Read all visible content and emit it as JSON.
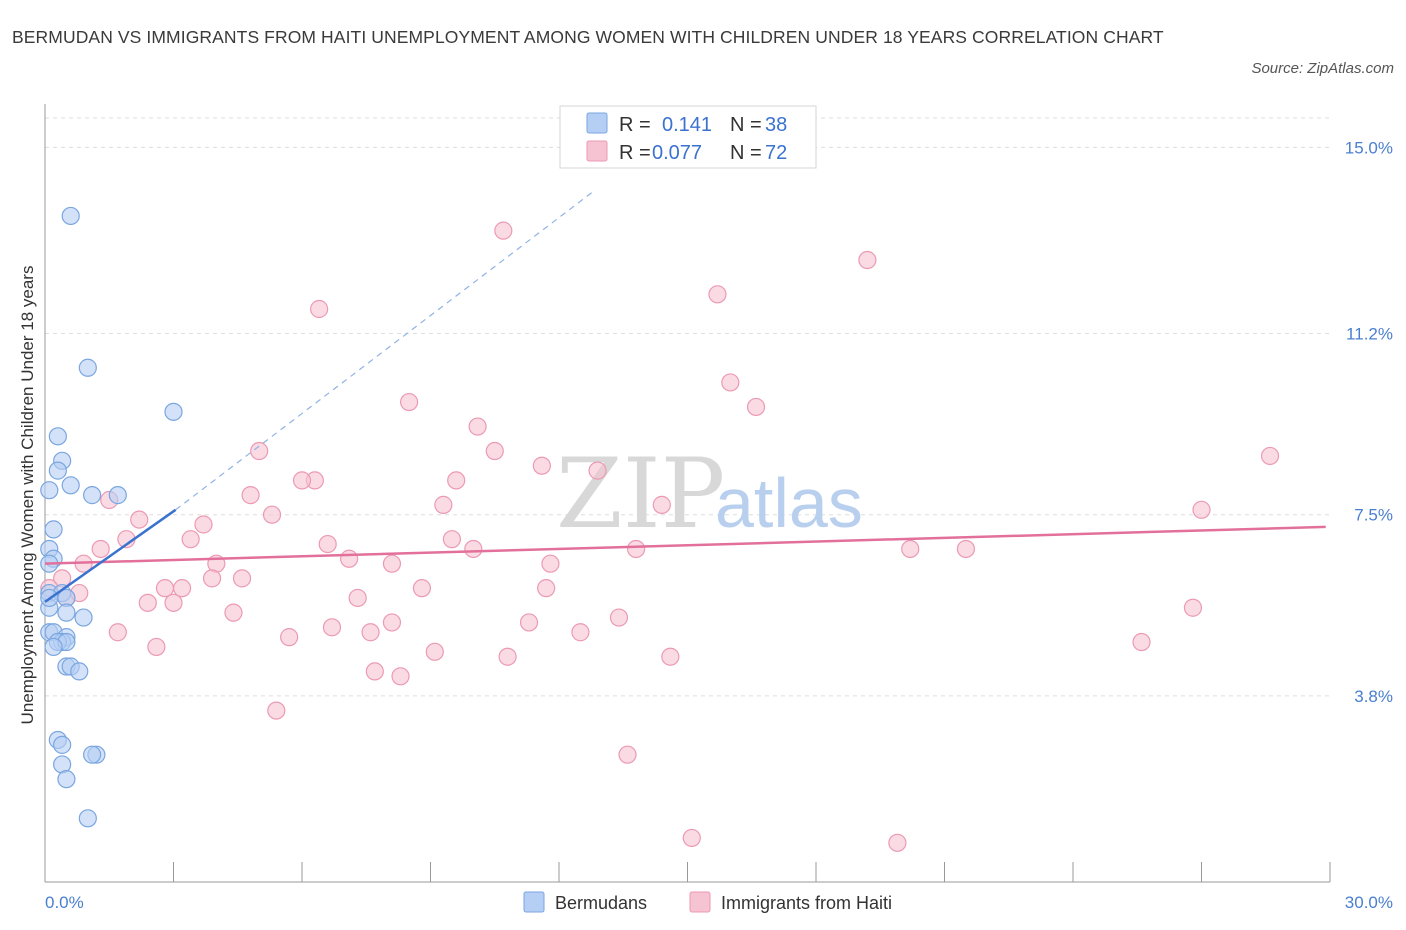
{
  "header": {
    "title": "BERMUDAN VS IMMIGRANTS FROM HAITI UNEMPLOYMENT AMONG WOMEN WITH CHILDREN UNDER 18 YEARS CORRELATION CHART",
    "source": "Source: ZipAtlas.com"
  },
  "watermark": {
    "zip": "ZIP",
    "atlas": "atlas"
  },
  "stats": {
    "bermudans": {
      "r_label": "R =",
      "r_value": "0.141",
      "n_label": "N =",
      "n_value": "38"
    },
    "haiti": {
      "r_label": "R =",
      "r_value": "0.077",
      "n_label": "N =",
      "n_value": "72"
    }
  },
  "legend": {
    "bermudans": "Bermudans",
    "haiti": "Immigrants from Haiti"
  },
  "colors": {
    "bermudans_fill": "#b5cef3",
    "bermudans_stroke": "#7aa6e0",
    "bermudans_line": "#3a72d0",
    "haiti_fill": "#f6c3d2",
    "haiti_stroke": "#ec9ab4",
    "haiti_line": "#e2709a",
    "tick_label": "#4a7fcf",
    "grid": "#dddddd"
  },
  "chart_data": {
    "type": "scatter",
    "title": "BERMUDAN VS IMMIGRANTS FROM HAITI UNEMPLOYMENT AMONG WOMEN WITH CHILDREN UNDER 18 YEARS CORRELATION CHART",
    "xlabel": "",
    "ylabel": "Unemployment Among Women with Children Under 18 years",
    "xlim": [
      0,
      30
    ],
    "ylim": [
      0,
      15.6
    ],
    "x_tick_labels": [
      "0.0%",
      "30.0%"
    ],
    "y_ticks": [
      3.8,
      7.5,
      11.2,
      15.0
    ],
    "y_tick_labels": [
      "3.8%",
      "7.5%",
      "11.2%",
      "15.0%"
    ],
    "grid": true,
    "legend_position": "bottom-center",
    "series": [
      {
        "name": "Bermudans",
        "points": [
          [
            0.6,
            13.6
          ],
          [
            1.0,
            10.5
          ],
          [
            0.3,
            9.1
          ],
          [
            0.4,
            8.6
          ],
          [
            0.3,
            8.4
          ],
          [
            0.6,
            8.1
          ],
          [
            0.1,
            8.0
          ],
          [
            1.1,
            7.9
          ],
          [
            1.7,
            7.9
          ],
          [
            3.0,
            9.6
          ],
          [
            0.2,
            7.2
          ],
          [
            0.1,
            6.8
          ],
          [
            0.2,
            6.6
          ],
          [
            0.1,
            6.5
          ],
          [
            0.1,
            5.9
          ],
          [
            0.4,
            5.9
          ],
          [
            0.5,
            5.8
          ],
          [
            0.1,
            5.6
          ],
          [
            0.5,
            5.5
          ],
          [
            0.9,
            5.4
          ],
          [
            0.1,
            5.1
          ],
          [
            0.2,
            5.1
          ],
          [
            0.5,
            5.0
          ],
          [
            0.4,
            4.9
          ],
          [
            0.3,
            4.9
          ],
          [
            0.5,
            4.9
          ],
          [
            0.2,
            4.8
          ],
          [
            0.5,
            4.4
          ],
          [
            0.6,
            4.4
          ],
          [
            0.8,
            4.3
          ],
          [
            0.3,
            2.9
          ],
          [
            0.4,
            2.8
          ],
          [
            1.2,
            2.6
          ],
          [
            1.1,
            2.6
          ],
          [
            0.4,
            2.4
          ],
          [
            0.5,
            2.1
          ],
          [
            1.0,
            1.3
          ],
          [
            0.1,
            5.8
          ]
        ],
        "trend": {
          "x": [
            0,
            3.05
          ],
          "y": [
            5.72,
            7.6
          ]
        },
        "trend_extrapolated": {
          "x": [
            3.05,
            12.8
          ],
          "y": [
            7.6,
            14.1
          ]
        }
      },
      {
        "name": "Immigrants from Haiti",
        "points": [
          [
            10.7,
            13.3
          ],
          [
            19.2,
            12.7
          ],
          [
            15.7,
            12.0
          ],
          [
            6.4,
            11.7
          ],
          [
            16.0,
            10.2
          ],
          [
            8.5,
            9.8
          ],
          [
            16.6,
            9.7
          ],
          [
            10.1,
            9.3
          ],
          [
            10.5,
            8.8
          ],
          [
            5.0,
            8.8
          ],
          [
            11.6,
            8.5
          ],
          [
            12.9,
            8.4
          ],
          [
            6.3,
            8.2
          ],
          [
            6.0,
            8.2
          ],
          [
            9.6,
            8.2
          ],
          [
            4.8,
            7.9
          ],
          [
            1.5,
            7.8
          ],
          [
            5.3,
            7.5
          ],
          [
            9.3,
            7.7
          ],
          [
            14.4,
            7.7
          ],
          [
            2.2,
            7.4
          ],
          [
            3.7,
            7.3
          ],
          [
            28.6,
            8.7
          ],
          [
            27.0,
            7.6
          ],
          [
            1.9,
            7.0
          ],
          [
            3.4,
            7.0
          ],
          [
            9.5,
            7.0
          ],
          [
            6.6,
            6.9
          ],
          [
            10.0,
            6.8
          ],
          [
            13.8,
            6.8
          ],
          [
            20.2,
            6.8
          ],
          [
            21.5,
            6.8
          ],
          [
            1.3,
            6.8
          ],
          [
            7.1,
            6.6
          ],
          [
            11.8,
            6.5
          ],
          [
            4.0,
            6.5
          ],
          [
            8.1,
            6.5
          ],
          [
            0.9,
            6.5
          ],
          [
            4.6,
            6.2
          ],
          [
            3.9,
            6.2
          ],
          [
            0.4,
            6.2
          ],
          [
            3.2,
            6.0
          ],
          [
            2.8,
            6.0
          ],
          [
            0.1,
            6.0
          ],
          [
            8.8,
            6.0
          ],
          [
            11.7,
            6.0
          ],
          [
            0.5,
            5.8
          ],
          [
            0.8,
            5.9
          ],
          [
            7.3,
            5.8
          ],
          [
            2.4,
            5.7
          ],
          [
            3.0,
            5.7
          ],
          [
            4.4,
            5.5
          ],
          [
            26.8,
            5.6
          ],
          [
            13.4,
            5.4
          ],
          [
            8.1,
            5.3
          ],
          [
            11.3,
            5.3
          ],
          [
            6.7,
            5.2
          ],
          [
            7.6,
            5.1
          ],
          [
            1.7,
            5.1
          ],
          [
            12.5,
            5.1
          ],
          [
            5.7,
            5.0
          ],
          [
            2.6,
            4.8
          ],
          [
            25.6,
            4.9
          ],
          [
            9.1,
            4.7
          ],
          [
            10.8,
            4.6
          ],
          [
            14.6,
            4.6
          ],
          [
            7.7,
            4.3
          ],
          [
            8.3,
            4.2
          ],
          [
            5.4,
            3.5
          ],
          [
            13.6,
            2.6
          ],
          [
            15.1,
            0.9
          ],
          [
            19.9,
            0.8
          ]
        ],
        "trend": {
          "x": [
            0,
            29.9
          ],
          "y": [
            6.5,
            7.25
          ]
        }
      }
    ]
  }
}
